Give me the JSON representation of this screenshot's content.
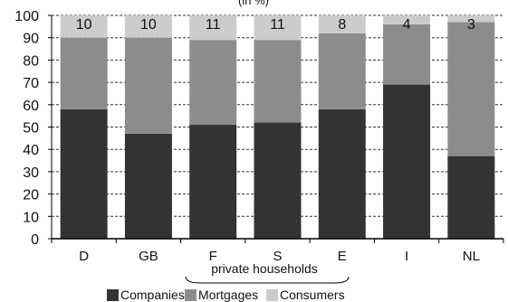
{
  "chart_data": {
    "type": "bar",
    "stacked": true,
    "title": "(in %)",
    "categories": [
      "D",
      "GB",
      "F",
      "S",
      "E",
      "I",
      "NL"
    ],
    "series": [
      {
        "name": "Companies",
        "values": [
          58,
          47,
          51,
          52,
          58,
          69,
          37
        ]
      },
      {
        "name": "Mortgages",
        "values": [
          32,
          43,
          38,
          37,
          34,
          27,
          60
        ]
      },
      {
        "name": "Consumers",
        "values": [
          10,
          10,
          11,
          11,
          8,
          4,
          3
        ]
      }
    ],
    "data_labels": [
      "10",
      "10",
      "11",
      "11",
      "8",
      "4",
      "3"
    ],
    "y_ticks": [
      0,
      10,
      20,
      30,
      40,
      50,
      60,
      70,
      80,
      90,
      100
    ],
    "ylim": [
      0,
      100
    ],
    "grid": true,
    "legend_position": "bottom",
    "group_label": "private households",
    "colors": {
      "Companies": "#333333",
      "Mortgages": "#8c8c8c",
      "Consumers": "#cccccc"
    }
  }
}
